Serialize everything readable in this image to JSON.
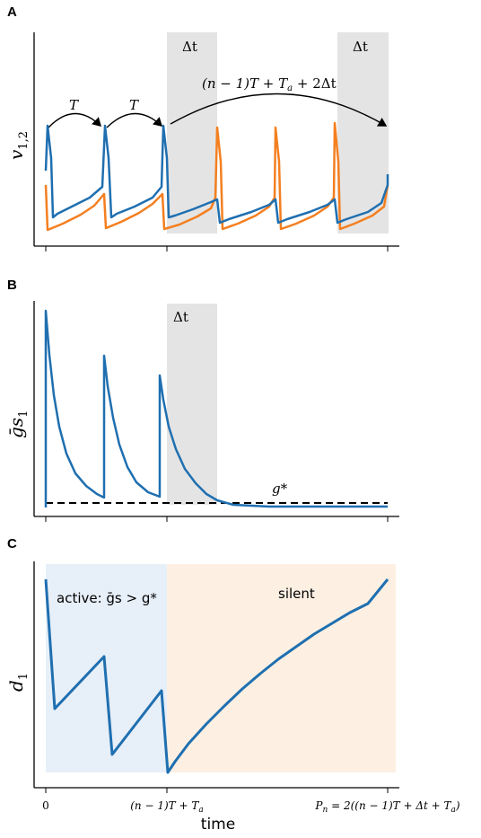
{
  "panels": {
    "A": {
      "letter": "A",
      "ylabel": "v",
      "ylabel_sub": "1,2",
      "arrow1": "T",
      "arrow2": "T",
      "arrow3": "(n − 1)T + T",
      "arrow3_sub": "a",
      "arrow3_tail": " + 2Δt",
      "shade1": "Δt",
      "shade2": "Δt"
    },
    "B": {
      "letter": "B",
      "ylabel": "ḡs",
      "ylabel_sub": "1",
      "shade": "Δt",
      "gstar": "g*"
    },
    "C": {
      "letter": "C",
      "ylabel": "d",
      "ylabel_sub": "1",
      "active_text": "active: ḡs > g*",
      "silent_text": "silent"
    }
  },
  "xaxis": {
    "label": "time",
    "ticks": [
      "0",
      "(n − 1)T + T",
      "P"
    ],
    "tick2_sub": "a",
    "tick3_sub": "n",
    "tick3_tail": " = 2((n − 1)T + Δt + T",
    "tick3_sub2": "a",
    "tick3_close": ")"
  },
  "colors": {
    "blue": "#1f6fb0",
    "orange": "#f47f20",
    "shade": "#e4e4e4",
    "active": "#e7eff8",
    "silent": "#fdf0e3"
  },
  "chart_data": [
    {
      "type": "line",
      "title": "",
      "xlabel": "time",
      "ylabel": "v1,2",
      "series": [
        {
          "name": "",
          "values": [
            [
              0,
              0.45
            ],
            [
              0,
              0.98
            ],
            [
              0.04,
              0.7
            ],
            [
              0.06,
              0.22
            ],
            [
              0.35,
              0.4
            ],
            [
              0.5,
              0.55
            ],
            [
              0.5,
              0.98
            ],
            [
              0.54,
              0.7
            ],
            [
              0.56,
              0.22
            ],
            [
              0.85,
              0.4
            ],
            [
              1.0,
              0.55
            ],
            [
              1.0,
              0.98
            ],
            [
              1.04,
              0.7
            ],
            [
              1.06,
              0.22
            ],
            [
              1.5,
              0.55
            ],
            [
              1.5,
              0.98
            ],
            [
              1.54,
              0.7
            ],
            [
              1.56,
              0.22
            ],
            [
              2.0,
              0.55
            ],
            [
              2.0,
              0.98
            ],
            [
              2.04,
              0.7
            ],
            [
              2.06,
              0.22
            ],
            [
              2.5,
              0.55
            ],
            [
              2.5,
              0.98
            ],
            [
              2.54,
              0.7
            ],
            [
              2.56,
              0.22
            ],
            [
              2.94,
              0.45
            ]
          ]
        },
        {
          "name": "",
          "values": [
            [
              0,
              0.3
            ],
            [
              0.02,
              0.08
            ],
            [
              0.5,
              0.38
            ],
            [
              0.5,
              0.08
            ],
            [
              1.0,
              0.38
            ],
            [
              1.0,
              0.08
            ],
            [
              1.45,
              0.35
            ],
            [
              1.45,
              0.98
            ],
            [
              1.5,
              0.55
            ],
            [
              1.5,
              0.08
            ],
            [
              1.95,
              0.35
            ],
            [
              1.95,
              0.98
            ],
            [
              2.0,
              0.55
            ],
            [
              2.0,
              0.08
            ],
            [
              2.45,
              0.35
            ],
            [
              2.45,
              0.98
            ],
            [
              2.5,
              0.55
            ],
            [
              2.5,
              0.08
            ],
            [
              2.94,
              0.35
            ]
          ]
        }
      ],
      "shaded_regions": [
        [
          1.0,
          1.45
        ],
        [
          2.45,
          2.94
        ]
      ],
      "grid": false
    },
    {
      "type": "line",
      "title": "",
      "xlabel": "time",
      "ylabel": "ḡs1",
      "series": [
        {
          "name": "",
          "values": [
            [
              0,
              0.0
            ],
            [
              0,
              1.0
            ],
            [
              0.05,
              0.6
            ],
            [
              0.15,
              0.25
            ],
            [
              0.3,
              0.1
            ],
            [
              0.5,
              0.05
            ],
            [
              0.5,
              0.75
            ],
            [
              0.55,
              0.45
            ],
            [
              0.7,
              0.15
            ],
            [
              1.0,
              0.05
            ],
            [
              1.0,
              0.66
            ],
            [
              1.05,
              0.42
            ],
            [
              1.2,
              0.15
            ],
            [
              1.45,
              0.02
            ],
            [
              1.8,
              0.0
            ],
            [
              2.94,
              0.0
            ]
          ]
        }
      ],
      "threshold": 0.02,
      "shaded_regions": [
        [
          1.0,
          1.45
        ]
      ]
    },
    {
      "type": "line",
      "title": "",
      "xlabel": "time",
      "ylabel": "d1",
      "series": [
        {
          "name": "",
          "values": [
            [
              0,
              1.0
            ],
            [
              0.08,
              0.38
            ],
            [
              0.5,
              0.6
            ],
            [
              0.58,
              0.14
            ],
            [
              1.0,
              0.45
            ],
            [
              1.0,
              0.0
            ],
            [
              1.5,
              0.42
            ],
            [
              2.0,
              0.66
            ],
            [
              2.5,
              0.82
            ],
            [
              2.94,
              0.94
            ]
          ]
        }
      ],
      "regions": [
        {
          "label": "active",
          "range": [
            0,
            1.0
          ]
        },
        {
          "label": "silent",
          "range": [
            1.0,
            3.0
          ]
        }
      ]
    }
  ]
}
